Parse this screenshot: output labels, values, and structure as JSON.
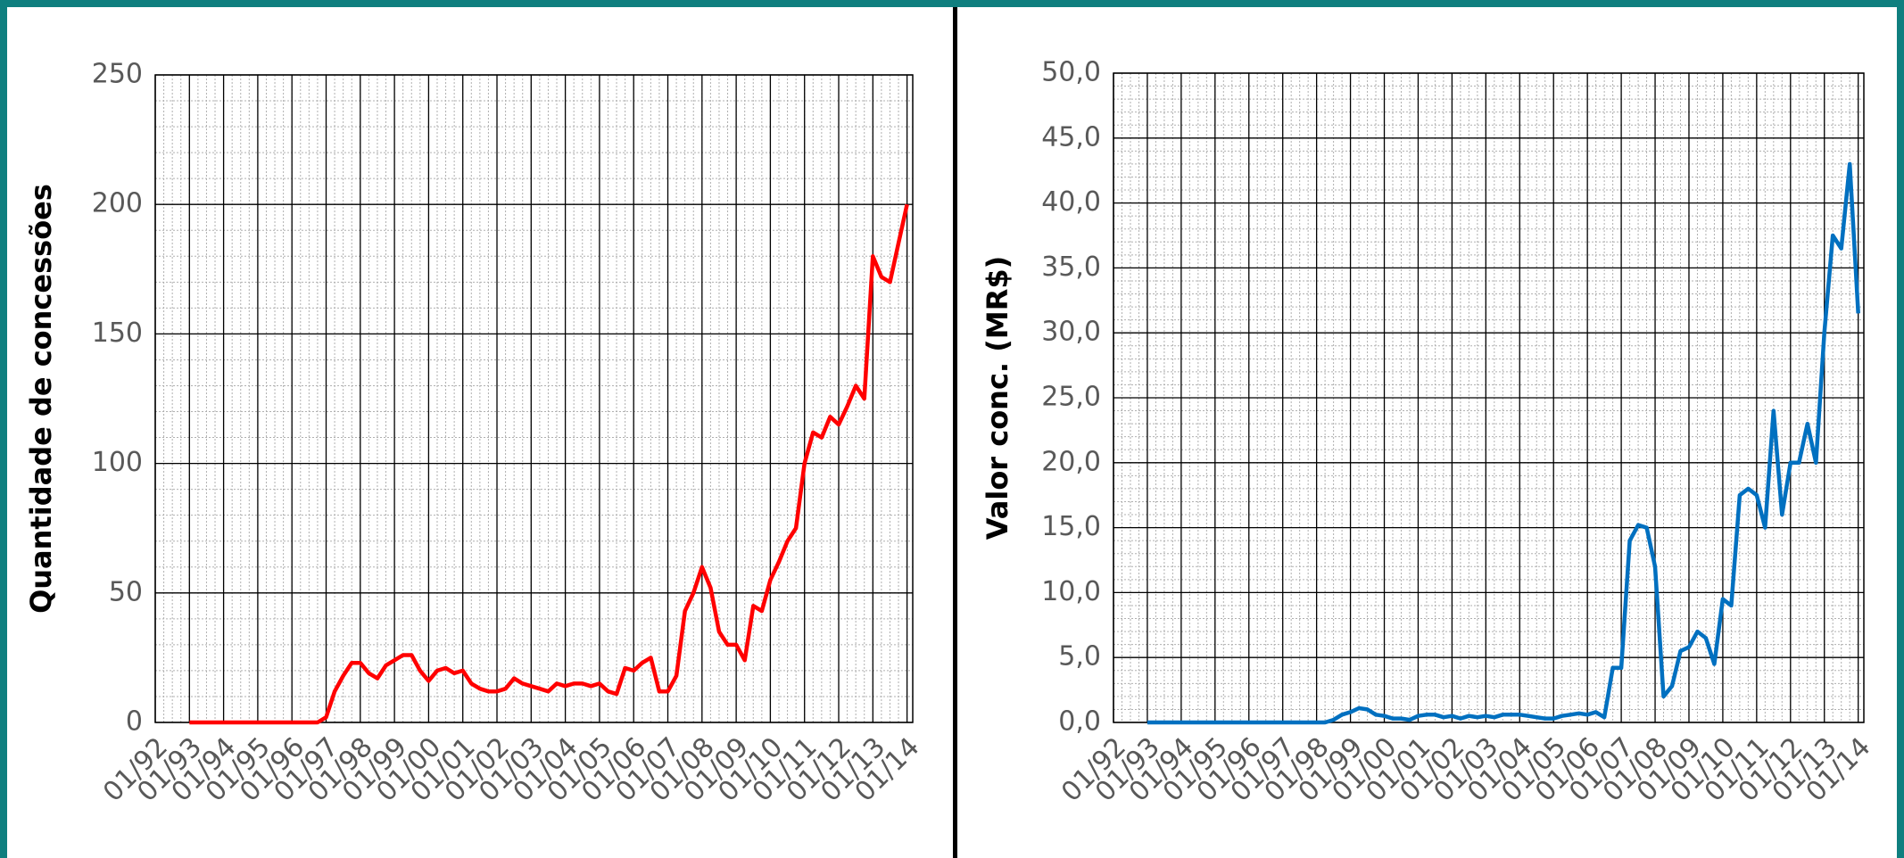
{
  "chart_data": [
    {
      "type": "line",
      "y_label": "Quantidade de concessões",
      "color": "#ff0000",
      "xlim": [
        "01/92",
        "03/14"
      ],
      "xticks": [
        "01/92",
        "01/93",
        "01/94",
        "01/95",
        "01/96",
        "01/97",
        "01/98",
        "01/99",
        "01/00",
        "01/01",
        "01/02",
        "01/03",
        "01/04",
        "01/05",
        "01/06",
        "01/07",
        "01/08",
        "01/09",
        "01/10",
        "01/11",
        "01/12",
        "01/13",
        "01/14"
      ],
      "ylim": [
        0,
        250
      ],
      "yticks": [
        0,
        50,
        100,
        150,
        200,
        250
      ],
      "grid": true,
      "x": [
        "01/93",
        "04/93",
        "07/93",
        "10/93",
        "01/94",
        "04/94",
        "07/94",
        "10/94",
        "01/95",
        "04/95",
        "07/95",
        "10/95",
        "01/96",
        "04/96",
        "07/96",
        "10/96",
        "01/97",
        "04/97",
        "07/97",
        "10/97",
        "01/98",
        "04/98",
        "07/98",
        "10/98",
        "01/99",
        "04/99",
        "07/99",
        "10/99",
        "01/00",
        "04/00",
        "07/00",
        "10/00",
        "01/01",
        "04/01",
        "07/01",
        "10/01",
        "01/02",
        "04/02",
        "07/02",
        "10/02",
        "01/03",
        "04/03",
        "07/03",
        "10/03",
        "01/04",
        "04/04",
        "07/04",
        "10/04",
        "01/05",
        "04/05",
        "07/05",
        "10/05",
        "01/06",
        "04/06",
        "07/06",
        "10/06",
        "01/07",
        "04/07",
        "07/07",
        "10/07",
        "01/08",
        "04/08",
        "07/08",
        "10/08",
        "01/09",
        "04/09",
        "07/09",
        "10/09",
        "01/10",
        "04/10",
        "07/10",
        "10/10",
        "01/11",
        "04/11",
        "07/11",
        "10/11",
        "01/12",
        "04/12",
        "07/12",
        "10/12",
        "01/13",
        "04/13",
        "07/13",
        "10/13",
        "01/14"
      ],
      "values": [
        0,
        0,
        0,
        0,
        0,
        0,
        0,
        0,
        0,
        0,
        0,
        0,
        0,
        0,
        0,
        0,
        2,
        12,
        18,
        23,
        23,
        19,
        17,
        22,
        24,
        26,
        26,
        20,
        16,
        20,
        21,
        19,
        20,
        15,
        13,
        12,
        12,
        13,
        17,
        15,
        14,
        13,
        12,
        15,
        14,
        15,
        15,
        14,
        15,
        12,
        11,
        21,
        20,
        23,
        25,
        12,
        12,
        18,
        43,
        50,
        60,
        52,
        35,
        30,
        30,
        24,
        45,
        43,
        55,
        62,
        70,
        75,
        100,
        112,
        110,
        118,
        115,
        122,
        130,
        125,
        180,
        172,
        170,
        185,
        200
      ]
    },
    {
      "type": "line",
      "y_label": "Valor conc. (MR$)",
      "color": "#0070c0",
      "xlim": [
        "01/92",
        "03/14"
      ],
      "xticks": [
        "01/92",
        "01/93",
        "01/94",
        "01/95",
        "01/96",
        "01/97",
        "01/98",
        "01/99",
        "01/00",
        "01/01",
        "01/02",
        "01/03",
        "01/04",
        "01/05",
        "01/06",
        "01/07",
        "01/08",
        "01/09",
        "01/10",
        "01/11",
        "01/12",
        "01/13",
        "01/14"
      ],
      "ylim": [
        0,
        50
      ],
      "yticks": [
        {
          "value": 0,
          "label": "0,0"
        },
        {
          "value": 5,
          "label": "5,0"
        },
        {
          "value": 10,
          "label": "10,0"
        },
        {
          "value": 15,
          "label": "15,0"
        },
        {
          "value": 20,
          "label": "20,0"
        },
        {
          "value": 25,
          "label": "25,0"
        },
        {
          "value": 30,
          "label": "30,0"
        },
        {
          "value": 35,
          "label": "35,0"
        },
        {
          "value": 40,
          "label": "40,0"
        },
        {
          "value": 45,
          "label": "45,0"
        },
        {
          "value": 50,
          "label": "50,0"
        }
      ],
      "grid": true,
      "x": [
        "01/93",
        "04/93",
        "07/93",
        "10/93",
        "01/94",
        "04/94",
        "07/94",
        "10/94",
        "01/95",
        "04/95",
        "07/95",
        "10/95",
        "01/96",
        "04/96",
        "07/96",
        "10/96",
        "01/97",
        "04/97",
        "07/97",
        "10/97",
        "01/98",
        "04/98",
        "07/98",
        "10/98",
        "01/99",
        "04/99",
        "07/99",
        "10/99",
        "01/00",
        "04/00",
        "07/00",
        "10/00",
        "01/01",
        "04/01",
        "07/01",
        "10/01",
        "01/02",
        "04/02",
        "07/02",
        "10/02",
        "01/03",
        "04/03",
        "07/03",
        "10/03",
        "01/04",
        "04/04",
        "07/04",
        "10/04",
        "01/05",
        "04/05",
        "07/05",
        "10/05",
        "01/06",
        "04/06",
        "07/06",
        "10/06",
        "01/07",
        "04/07",
        "07/07",
        "10/07",
        "01/08",
        "04/08",
        "07/08",
        "10/08",
        "01/09",
        "04/09",
        "07/09",
        "10/09",
        "01/10",
        "04/10",
        "07/10",
        "10/10",
        "01/11",
        "04/11",
        "07/11",
        "10/11",
        "01/12",
        "04/12",
        "07/12",
        "10/12",
        "01/13",
        "04/13",
        "07/13",
        "10/13",
        "01/14"
      ],
      "values": [
        0,
        0,
        0,
        0,
        0,
        0,
        0,
        0,
        0,
        0,
        0,
        0,
        0,
        0,
        0,
        0,
        0,
        0,
        0,
        0,
        0,
        0,
        0.2,
        0.6,
        0.8,
        1.1,
        1.0,
        0.6,
        0.5,
        0.3,
        0.3,
        0.2,
        0.5,
        0.6,
        0.6,
        0.4,
        0.5,
        0.3,
        0.5,
        0.4,
        0.5,
        0.4,
        0.6,
        0.6,
        0.6,
        0.5,
        0.4,
        0.3,
        0.3,
        0.5,
        0.6,
        0.7,
        0.6,
        0.8,
        0.4,
        4.2,
        4.2,
        14.0,
        15.2,
        15.0,
        12.0,
        2.0,
        2.8,
        5.5,
        5.8,
        7.0,
        6.5,
        4.5,
        9.5,
        9.0,
        17.5,
        18.0,
        17.5,
        15.0,
        24.0,
        16.0,
        20.0,
        20.0,
        23.0,
        20.0,
        30.0,
        37.5,
        36.5,
        43.0,
        31.5
      ]
    }
  ]
}
